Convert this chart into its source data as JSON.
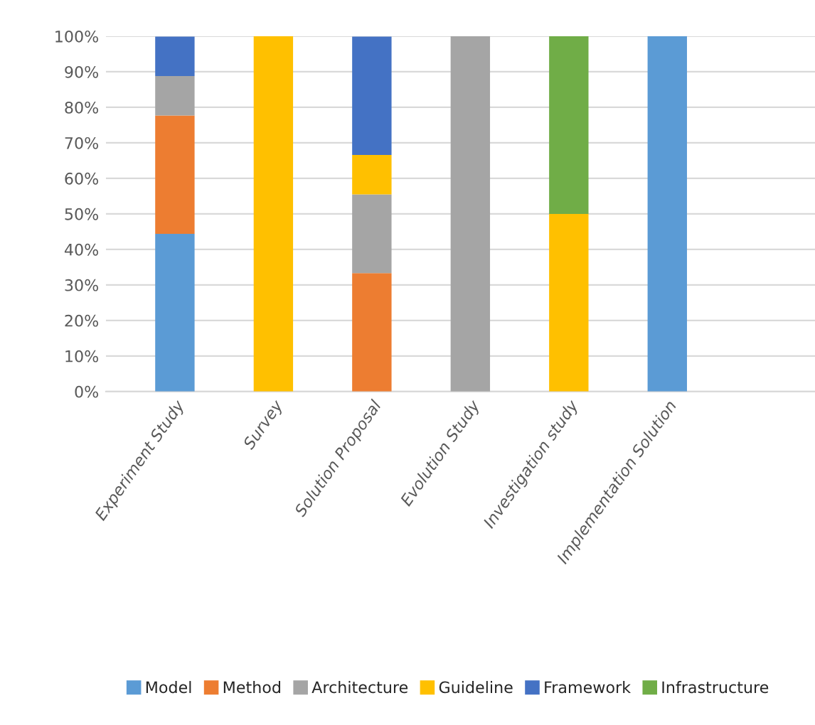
{
  "chart_data": {
    "type": "bar",
    "stacked": true,
    "categories": [
      "Experiment Study",
      "Survey",
      "Solution Proposal",
      "Evolution Study",
      "Investigation study",
      "Implementation Solution",
      null
    ],
    "series": [
      {
        "name": "Model",
        "color": "#5b9bd5",
        "values": [
          44.4,
          null,
          null,
          null,
          null,
          100,
          null
        ]
      },
      {
        "name": "Method",
        "color": "#ed7d31",
        "values": [
          33.3,
          null,
          33.3,
          null,
          null,
          null,
          null
        ]
      },
      {
        "name": "Architecture",
        "color": "#a5a5a5",
        "values": [
          11.1,
          null,
          22.2,
          100,
          null,
          null,
          null
        ]
      },
      {
        "name": "Guideline",
        "color": "#ffc000",
        "values": [
          null,
          100,
          11.1,
          null,
          50,
          null,
          null
        ]
      },
      {
        "name": "Framework",
        "color": "#4472c4",
        "values": [
          11.1,
          null,
          33.3,
          null,
          null,
          null,
          null
        ]
      },
      {
        "name": "Infrastructure",
        "color": "#70ad47",
        "values": [
          null,
          null,
          null,
          null,
          50,
          null,
          null
        ]
      }
    ],
    "ylim": [
      0,
      100
    ],
    "yticks": [
      {
        "value": 0,
        "label": "0%"
      },
      {
        "value": 10,
        "label": "10%"
      },
      {
        "value": 20,
        "label": "20%"
      },
      {
        "value": 30,
        "label": "30%"
      },
      {
        "value": 40,
        "label": "40%"
      },
      {
        "value": 50,
        "label": "50%"
      },
      {
        "value": 60,
        "label": "60%"
      },
      {
        "value": 70,
        "label": "70%"
      },
      {
        "value": 80,
        "label": "80%"
      },
      {
        "value": 90,
        "label": "90%"
      },
      {
        "value": 100,
        "label": "100%"
      }
    ],
    "grid": "y",
    "legend": "bottom"
  }
}
